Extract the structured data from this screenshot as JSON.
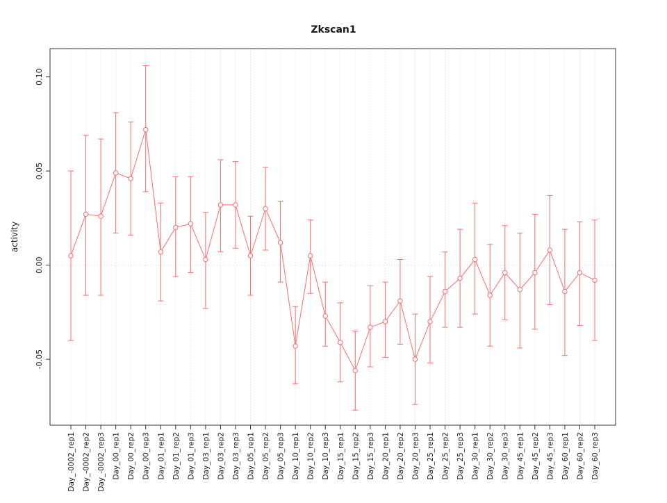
{
  "chart_data": {
    "type": "line",
    "title": "Zkscan1",
    "ylabel": "activity",
    "ylim": [
      -0.085,
      0.115
    ],
    "yticks": [
      -0.05,
      0.0,
      0.05,
      0.1
    ],
    "ytick_labels": [
      "-0.05",
      "0.00",
      "0.05",
      "0.10"
    ],
    "grid": true,
    "legend_position": "none",
    "point_color": "#ff6b6b",
    "grid_color": "#d8d8d8",
    "axis_color": "#333333",
    "categories": [
      "Day_-0002_rep1",
      "Day_-0002_rep2",
      "Day_-0002_rep3",
      "Day_00_rep1",
      "Day_00_rep2",
      "Day_00_rep3",
      "Day_01_rep1",
      "Day_01_rep2",
      "Day_01_rep3",
      "Day_03_rep1",
      "Day_03_rep2",
      "Day_03_rep3",
      "Day_05_rep1",
      "Day_05_rep2",
      "Day_05_rep3",
      "Day_10_rep1",
      "Day_10_rep2",
      "Day_10_rep3",
      "Day_15_rep1",
      "Day_15_rep2",
      "Day_15_rep3",
      "Day_20_rep1",
      "Day_20_rep2",
      "Day_20_rep3",
      "Day_25_rep1",
      "Day_25_rep2",
      "Day_25_rep3",
      "Day_30_rep1",
      "Day_30_rep2",
      "Day_30_rep3",
      "Day_45_rep1",
      "Day_45_rep2",
      "Day_45_rep3",
      "Day_60_rep1",
      "Day_60_rep2",
      "Day_60_rep3"
    ],
    "series": [
      {
        "name": "activity",
        "means": [
          0.005,
          0.027,
          0.026,
          0.049,
          0.046,
          0.072,
          0.007,
          0.02,
          0.022,
          0.003,
          0.032,
          0.032,
          0.005,
          0.03,
          0.012,
          -0.043,
          0.005,
          -0.027,
          -0.041,
          -0.056,
          -0.033,
          -0.03,
          -0.019,
          -0.05,
          -0.03,
          -0.014,
          -0.007,
          0.003,
          -0.016,
          -0.004,
          -0.013,
          -0.004,
          0.008,
          -0.014,
          -0.004,
          -0.008
        ],
        "lower": [
          -0.04,
          -0.016,
          -0.016,
          0.017,
          0.016,
          0.039,
          -0.019,
          -0.006,
          -0.004,
          -0.023,
          0.007,
          0.009,
          -0.016,
          0.008,
          -0.009,
          -0.063,
          -0.015,
          -0.043,
          -0.062,
          -0.077,
          -0.054,
          -0.049,
          -0.042,
          -0.074,
          -0.052,
          -0.033,
          -0.033,
          -0.026,
          -0.043,
          -0.029,
          -0.044,
          -0.034,
          -0.021,
          -0.048,
          -0.032,
          -0.04
        ],
        "upper": [
          0.05,
          0.069,
          0.067,
          0.081,
          0.076,
          0.106,
          0.033,
          0.047,
          0.047,
          0.028,
          0.056,
          0.055,
          0.026,
          0.052,
          0.034,
          -0.022,
          0.024,
          -0.009,
          -0.02,
          -0.035,
          -0.011,
          -0.009,
          0.003,
          -0.026,
          -0.006,
          0.007,
          0.019,
          0.033,
          0.011,
          0.021,
          0.017,
          0.027,
          0.037,
          0.019,
          0.023,
          0.024
        ]
      }
    ]
  }
}
